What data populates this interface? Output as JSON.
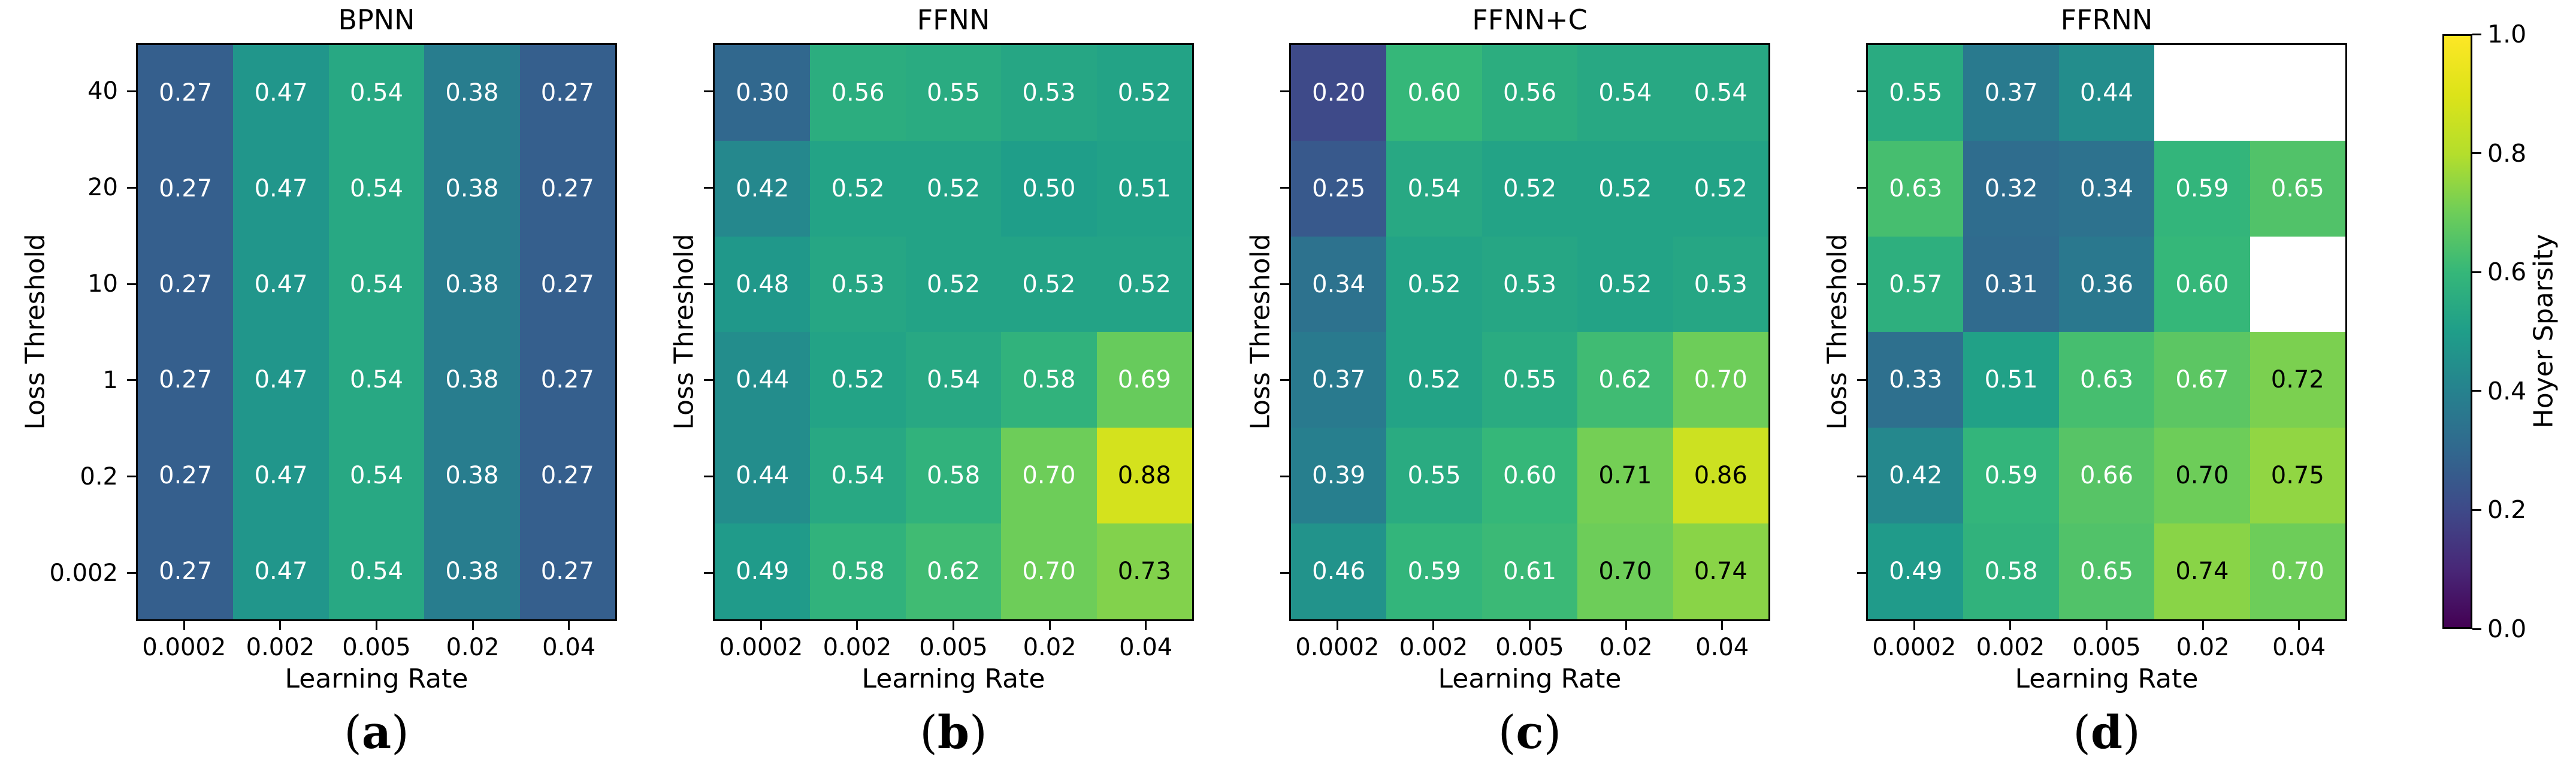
{
  "chart_data": {
    "type": "heatmap",
    "shared": {
      "x_label": "Learning Rate",
      "y_label": "Loss Threshold",
      "x_tick_labels": [
        "0.0002",
        "0.002",
        "0.005",
        "0.02",
        "0.04"
      ],
      "y_tick_labels": [
        "40",
        "20",
        "10",
        "1",
        "0.2",
        "0.002"
      ],
      "vmin": 0.0,
      "vmax": 1.0,
      "colormap": "viridis",
      "annotation_light_color": "#ffffff",
      "annotation_dark_color": "#000000",
      "missing_cell_color": "#ffffff"
    },
    "panels": [
      {
        "title": "BPNN",
        "caption": {
          "open": "(",
          "letter": "a",
          "close": ")"
        },
        "show_y_tick_labels": true,
        "values": [
          [
            0.27,
            0.47,
            0.54,
            0.38,
            0.27
          ],
          [
            0.27,
            0.47,
            0.54,
            0.38,
            0.27
          ],
          [
            0.27,
            0.47,
            0.54,
            0.38,
            0.27
          ],
          [
            0.27,
            0.47,
            0.54,
            0.38,
            0.27
          ],
          [
            0.27,
            0.47,
            0.54,
            0.38,
            0.27
          ],
          [
            0.27,
            0.47,
            0.54,
            0.38,
            0.27
          ]
        ],
        "dark_cells": []
      },
      {
        "title": "FFNN",
        "caption": {
          "open": "(",
          "letter": "b",
          "close": ")"
        },
        "show_y_tick_labels": false,
        "values": [
          [
            0.3,
            0.56,
            0.55,
            0.53,
            0.52
          ],
          [
            0.42,
            0.52,
            0.52,
            0.5,
            0.51
          ],
          [
            0.48,
            0.53,
            0.52,
            0.52,
            0.52
          ],
          [
            0.44,
            0.52,
            0.54,
            0.58,
            0.69
          ],
          [
            0.44,
            0.54,
            0.58,
            0.7,
            0.88
          ],
          [
            0.49,
            0.58,
            0.62,
            0.7,
            0.73
          ]
        ],
        "dark_cells": [
          [
            4,
            4
          ],
          [
            5,
            4
          ]
        ]
      },
      {
        "title": "FFNN+C",
        "caption": {
          "open": "(",
          "letter": "c",
          "close": ")"
        },
        "show_y_tick_labels": false,
        "values": [
          [
            0.2,
            0.6,
            0.56,
            0.54,
            0.54
          ],
          [
            0.25,
            0.54,
            0.52,
            0.52,
            0.52
          ],
          [
            0.34,
            0.52,
            0.53,
            0.52,
            0.53
          ],
          [
            0.37,
            0.52,
            0.55,
            0.62,
            0.7
          ],
          [
            0.39,
            0.55,
            0.6,
            0.71,
            0.86
          ],
          [
            0.46,
            0.59,
            0.61,
            0.7,
            0.74
          ]
        ],
        "dark_cells": [
          [
            4,
            3
          ],
          [
            4,
            4
          ],
          [
            5,
            3
          ],
          [
            5,
            4
          ]
        ]
      },
      {
        "title": "FFRNN",
        "caption": {
          "open": "(",
          "letter": "d",
          "close": ")"
        },
        "show_y_tick_labels": false,
        "values": [
          [
            0.55,
            0.37,
            0.44,
            null,
            null
          ],
          [
            0.63,
            0.32,
            0.34,
            0.59,
            0.65
          ],
          [
            0.57,
            0.31,
            0.36,
            0.6,
            null
          ],
          [
            0.33,
            0.51,
            0.63,
            0.67,
            0.72
          ],
          [
            0.42,
            0.59,
            0.66,
            0.7,
            0.75
          ],
          [
            0.49,
            0.58,
            0.65,
            0.74,
            0.7
          ]
        ],
        "dark_cells": [
          [
            3,
            4
          ],
          [
            4,
            3
          ],
          [
            4,
            4
          ],
          [
            5,
            3
          ]
        ]
      }
    ],
    "colorbar": {
      "label": "Hoyer Sparsity",
      "tick_labels": [
        "1.0",
        "0.8",
        "0.6",
        "0.4",
        "0.2",
        "0.0"
      ],
      "gradient_stops": [
        "#440154",
        "#482878",
        "#3e4a89",
        "#31688e",
        "#26828e",
        "#1f9e89",
        "#35b779",
        "#6dcd59",
        "#b4de2c",
        "#dce319",
        "#fde725"
      ]
    }
  }
}
